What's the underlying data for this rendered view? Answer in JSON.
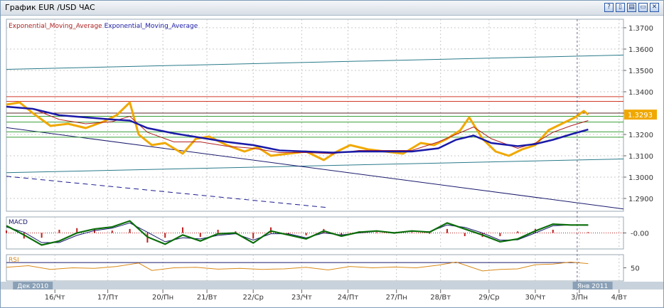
{
  "window": {
    "title": "График EUR /USD  ЧАС",
    "buttons": [
      {
        "name": "help-button",
        "glyph": "?"
      },
      {
        "name": "tile-button",
        "glyph": "▯"
      },
      {
        "name": "cascade-button",
        "glyph": "▤"
      },
      {
        "name": "minimize-button",
        "glyph": "▭"
      },
      {
        "name": "close-button",
        "glyph": "✕"
      }
    ]
  },
  "colors": {
    "price": "#f0a800",
    "ema_red": "#b22222",
    "ema_blue": "#1a1aa8",
    "macd_line": "#0a6e0a",
    "signal_line": "#1a1a6e",
    "histogram": "#c02020",
    "rsi": "#d98a1a",
    "last_price_bg": "#f0a800",
    "axis_bar": "#c8d2dc"
  },
  "chart_data": [
    {
      "type": "line",
      "panel": "price",
      "legend": [
        {
          "label": "Exponential_Moving_Average",
          "color": "#b22222"
        },
        {
          "label": "Exponential_Moving_Average",
          "color": "#1a1aa8"
        }
      ],
      "ylim": [
        1.284,
        1.374
      ],
      "yticks": [
        "1.3700",
        "1.3600",
        "1.3500",
        "1.3400",
        "1.3300",
        "1.3200",
        "1.3100",
        "1.3000",
        "1.2900"
      ],
      "last_price": "1.3293",
      "xlim": [
        0,
        14
      ],
      "x_tick_labels": [
        {
          "x": 1.1,
          "label": "16/Чт"
        },
        {
          "x": 2.3,
          "label": "17/Пт"
        },
        {
          "x": 3.55,
          "label": "20/Пн"
        },
        {
          "x": 4.55,
          "label": "21/Вт"
        },
        {
          "x": 5.6,
          "label": "22/Ср"
        },
        {
          "x": 6.7,
          "label": "23/Чт"
        },
        {
          "x": 7.75,
          "label": "24/Пт"
        },
        {
          "x": 8.85,
          "label": "27/Пн"
        },
        {
          "x": 9.85,
          "label": "28/Вт"
        },
        {
          "x": 10.95,
          "label": "29/Ср"
        },
        {
          "x": 12.0,
          "label": "30/Чт"
        },
        {
          "x": 13.0,
          "label": "3/Пн"
        },
        {
          "x": 13.9,
          "label": "4/Вт"
        }
      ],
      "period_labels": [
        {
          "x": 0.6,
          "label": "Дек 2010"
        },
        {
          "x": 13.3,
          "label": "Янв 2011"
        }
      ],
      "price_series": {
        "x": [
          0,
          0.3,
          0.6,
          1.0,
          1.4,
          1.8,
          2.2,
          2.5,
          2.8,
          3.0,
          3.3,
          3.6,
          4.0,
          4.3,
          4.6,
          5.0,
          5.4,
          5.7,
          6.0,
          6.4,
          6.8,
          7.2,
          7.5,
          7.8,
          8.2,
          8.6,
          9.0,
          9.4,
          9.7,
          10.0,
          10.3,
          10.5,
          10.8,
          11.1,
          11.4,
          11.7,
          12.0,
          12.3,
          12.6,
          12.9,
          13.1,
          13.2
        ],
        "y": [
          1.334,
          1.335,
          1.33,
          1.324,
          1.325,
          1.323,
          1.326,
          1.329,
          1.335,
          1.32,
          1.315,
          1.316,
          1.311,
          1.318,
          1.319,
          1.315,
          1.312,
          1.314,
          1.31,
          1.311,
          1.312,
          1.308,
          1.312,
          1.315,
          1.313,
          1.312,
          1.311,
          1.316,
          1.315,
          1.318,
          1.322,
          1.328,
          1.318,
          1.312,
          1.31,
          1.313,
          1.315,
          1.322,
          1.325,
          1.328,
          1.331,
          1.3293
        ]
      },
      "ema_red": {
        "x": [
          0,
          0.6,
          1.2,
          1.8,
          2.4,
          2.8,
          3.2,
          3.8,
          4.4,
          5.0,
          5.6,
          6.2,
          6.8,
          7.4,
          8.0,
          8.6,
          9.2,
          9.8,
          10.2,
          10.6,
          11.0,
          11.6,
          12.0,
          12.4,
          12.8,
          13.2
        ],
        "y": [
          1.333,
          1.332,
          1.327,
          1.325,
          1.326,
          1.3285,
          1.321,
          1.3165,
          1.3165,
          1.3145,
          1.3135,
          1.3115,
          1.3115,
          1.311,
          1.3125,
          1.3125,
          1.3125,
          1.3165,
          1.32,
          1.3235,
          1.318,
          1.3135,
          1.316,
          1.321,
          1.324,
          1.3265
        ]
      },
      "ema_blue": {
        "x": [
          0,
          0.6,
          1.2,
          1.8,
          2.4,
          2.8,
          3.2,
          3.8,
          4.4,
          5.0,
          5.6,
          6.2,
          6.8,
          7.4,
          8.0,
          8.6,
          9.2,
          9.8,
          10.2,
          10.6,
          11.0,
          11.6,
          12.0,
          12.4,
          12.8,
          13.2
        ],
        "y": [
          1.333,
          1.332,
          1.329,
          1.328,
          1.327,
          1.3265,
          1.323,
          1.3205,
          1.3185,
          1.3165,
          1.315,
          1.3125,
          1.312,
          1.3115,
          1.312,
          1.312,
          1.312,
          1.3135,
          1.3175,
          1.3195,
          1.316,
          1.3145,
          1.3155,
          1.3175,
          1.32,
          1.3223
        ]
      },
      "horizontal_lines": [
        {
          "y": 1.3377,
          "color": "#d03a2a"
        },
        {
          "y": 1.3355,
          "color": "#d03a2a"
        },
        {
          "y": 1.33,
          "color": "#5a2a2a"
        },
        {
          "y": 1.3285,
          "color": "#3aa03a"
        },
        {
          "y": 1.3258,
          "color": "#3aa03a"
        },
        {
          "y": 1.3212,
          "color": "#3aa03a"
        },
        {
          "y": 1.3187,
          "color": "#3aa03a"
        }
      ],
      "trend_lines": [
        {
          "x": [
            0,
            14
          ],
          "y": [
            1.3505,
            1.3572
          ],
          "color": "#2a7a8a",
          "dash": false
        },
        {
          "x": [
            0,
            14
          ],
          "y": [
            1.3021,
            1.3085
          ],
          "color": "#2a7a8a",
          "dash": false
        },
        {
          "x": [
            0,
            14
          ],
          "y": [
            1.3232,
            1.2851
          ],
          "color": "#1a1a6e",
          "dash": false
        },
        {
          "x": [
            0,
            7.3
          ],
          "y": [
            1.3004,
            1.2857
          ],
          "color": "#1a1a8e",
          "dash": true
        }
      ],
      "cursor_x": 12.95
    },
    {
      "type": "line",
      "panel": "macd",
      "legend": [
        {
          "label": "MACD"
        }
      ],
      "ylim": [
        -0.4,
        0.4
      ],
      "yticks": [
        "-0.00"
      ],
      "macd_line": {
        "x": [
          0,
          0.4,
          0.8,
          1.2,
          1.6,
          2.0,
          2.4,
          2.8,
          3.2,
          3.6,
          4.0,
          4.4,
          4.8,
          5.2,
          5.6,
          6.0,
          6.4,
          6.8,
          7.2,
          7.6,
          8.0,
          8.4,
          8.8,
          9.2,
          9.6,
          10.0,
          10.4,
          10.8,
          11.2,
          11.6,
          12.0,
          12.4,
          12.8,
          13.2
        ],
        "y": [
          0.18,
          -0.05,
          -0.3,
          -0.2,
          0.0,
          0.1,
          0.15,
          0.3,
          -0.1,
          -0.28,
          -0.05,
          -0.2,
          -0.02,
          0.0,
          -0.25,
          0.05,
          -0.05,
          -0.15,
          0.05,
          -0.08,
          0.02,
          0.05,
          0.0,
          0.05,
          0.02,
          0.25,
          0.1,
          -0.05,
          -0.22,
          -0.15,
          0.05,
          0.22,
          0.2,
          0.2
        ]
      },
      "signal_line": {
        "x": [
          0,
          0.4,
          0.8,
          1.2,
          1.6,
          2.0,
          2.4,
          2.8,
          3.2,
          3.6,
          4.0,
          4.4,
          4.8,
          5.2,
          5.6,
          6.0,
          6.4,
          6.8,
          7.2,
          7.6,
          8.0,
          8.4,
          8.8,
          9.2,
          9.6,
          10.0,
          10.4,
          10.8,
          11.2,
          11.6,
          12.0,
          12.4,
          12.8,
          13.2
        ],
        "y": [
          0.15,
          0.02,
          -0.24,
          -0.24,
          -0.06,
          0.06,
          0.12,
          0.25,
          0.02,
          -0.22,
          -0.12,
          -0.15,
          -0.06,
          -0.02,
          -0.18,
          -0.02,
          -0.02,
          -0.12,
          0.0,
          -0.05,
          0.0,
          0.04,
          0.01,
          0.04,
          0.03,
          0.2,
          0.14,
          0.0,
          -0.18,
          -0.17,
          0.0,
          0.18,
          0.2,
          0.19
        ]
      }
    },
    {
      "type": "line",
      "panel": "rsi",
      "legend": [
        {
          "label": "RSI"
        }
      ],
      "ylim": [
        0,
        100
      ],
      "yticks": [
        "50"
      ],
      "upper_band": 70,
      "rsi_series": {
        "x": [
          0,
          0.5,
          1.0,
          1.5,
          2.0,
          2.5,
          3.0,
          3.3,
          3.8,
          4.3,
          4.8,
          5.3,
          5.8,
          6.3,
          6.8,
          7.3,
          7.8,
          8.3,
          8.8,
          9.3,
          9.8,
          10.2,
          10.5,
          10.8,
          11.2,
          11.6,
          12.0,
          12.4,
          12.8,
          13.2
        ],
        "y": [
          52,
          58,
          44,
          50,
          48,
          55,
          68,
          40,
          50,
          52,
          45,
          48,
          44,
          46,
          52,
          42,
          55,
          50,
          53,
          50,
          60,
          72,
          55,
          38,
          44,
          46,
          62,
          64,
          72,
          66
        ]
      }
    }
  ]
}
